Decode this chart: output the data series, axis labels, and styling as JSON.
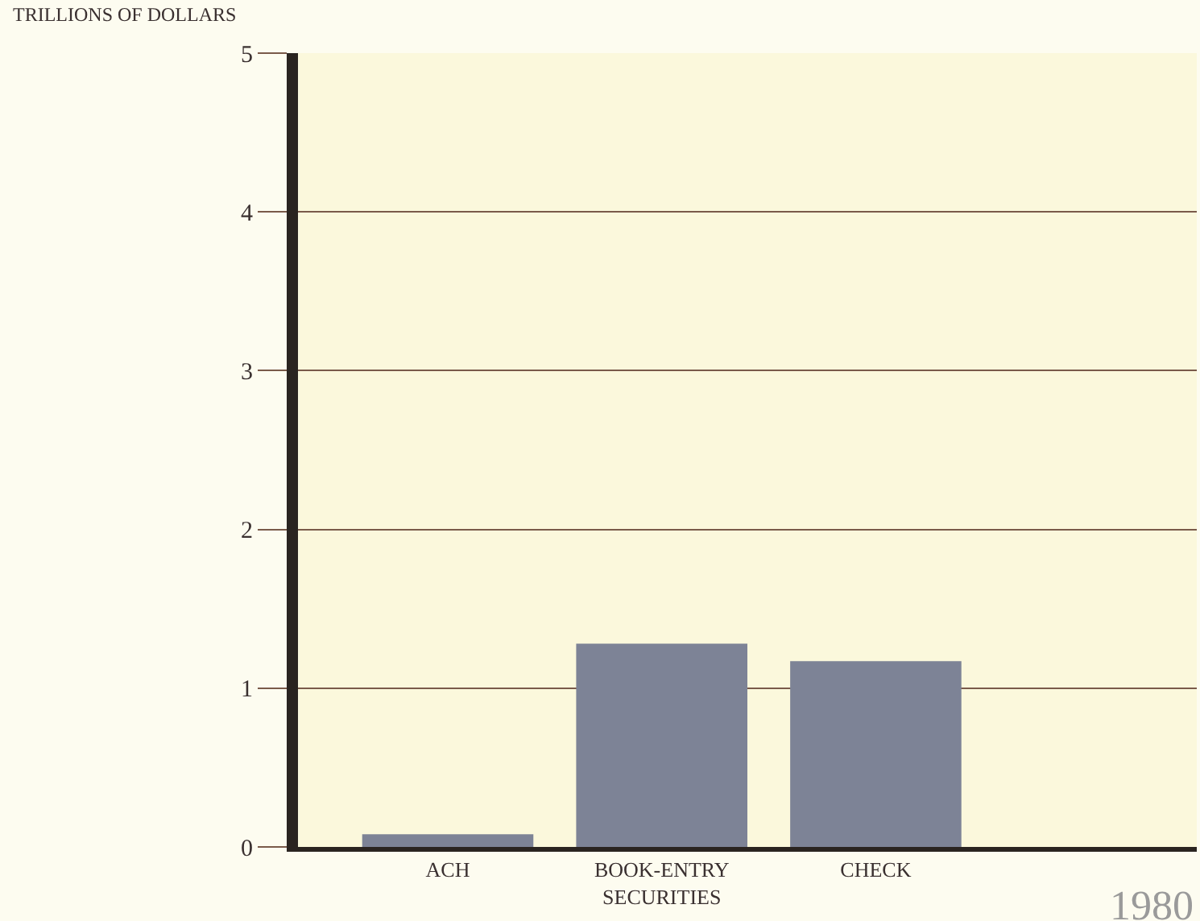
{
  "chart_data": {
    "type": "bar",
    "ylabel": "TRILLIONS OF DOLLARS",
    "categories": [
      "ACH",
      "BOOK-ENTRY SECURITIES",
      "CHECK",
      null
    ],
    "values": [
      0.08,
      1.28,
      1.17,
      null
    ],
    "color": "#7d8396",
    "ylim": [
      0,
      5
    ],
    "yticks": [
      0,
      1,
      2,
      3,
      4,
      5
    ],
    "grid": "y",
    "annotations": [
      "1980"
    ]
  }
}
